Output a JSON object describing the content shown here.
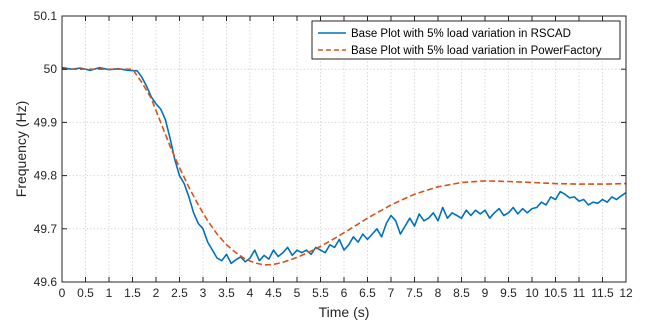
{
  "chart_data": {
    "type": "line",
    "title": "",
    "xlabel": "Time (s)",
    "ylabel": "Frequency (Hz)",
    "xlim": [
      0,
      12
    ],
    "ylim": [
      49.6,
      50.1
    ],
    "xticks": [
      0,
      0.5,
      1,
      1.5,
      2,
      2.5,
      3,
      3.5,
      4,
      4.5,
      5,
      5.5,
      6,
      6.5,
      7,
      7.5,
      8,
      8.5,
      9,
      9.5,
      10,
      10.5,
      11,
      11.5,
      12
    ],
    "xtick_labels": [
      "0",
      "0.5",
      "1",
      "1.5",
      "2",
      "2.5",
      "3",
      "3.5",
      "4",
      "4.5",
      "5",
      "5.5",
      "6",
      "6.5",
      "7",
      "7.5",
      "8",
      "8.5",
      "9",
      "9.5",
      "10",
      "10.5",
      "11",
      "11.5",
      "12"
    ],
    "yticks": [
      49.6,
      49.7,
      49.8,
      49.9,
      50,
      50.1
    ],
    "ytick_labels": [
      "49.6",
      "49.7",
      "49.8",
      "49.9",
      "50",
      "50.1"
    ],
    "grid": true,
    "legend_position": "top-right",
    "series": [
      {
        "name": "Base Plot with 5% load variation in RSCAD",
        "color": "#0072BD",
        "style": "solid",
        "x": [
          0,
          0.2,
          0.4,
          0.6,
          0.8,
          1.0,
          1.2,
          1.4,
          1.6,
          1.7,
          1.8,
          1.9,
          2.0,
          2.1,
          2.2,
          2.3,
          2.4,
          2.5,
          2.6,
          2.7,
          2.8,
          2.9,
          3.0,
          3.1,
          3.2,
          3.3,
          3.4,
          3.5,
          3.6,
          3.7,
          3.8,
          3.9,
          4.0,
          4.1,
          4.2,
          4.3,
          4.4,
          4.5,
          4.6,
          4.7,
          4.8,
          4.9,
          5.0,
          5.1,
          5.2,
          5.3,
          5.4,
          5.5,
          5.6,
          5.7,
          5.8,
          5.9,
          6.0,
          6.1,
          6.2,
          6.3,
          6.4,
          6.5,
          6.6,
          6.7,
          6.8,
          6.9,
          7.0,
          7.1,
          7.2,
          7.3,
          7.4,
          7.5,
          7.6,
          7.7,
          7.8,
          7.9,
          8.0,
          8.1,
          8.2,
          8.3,
          8.4,
          8.5,
          8.6,
          8.7,
          8.8,
          8.9,
          9.0,
          9.1,
          9.2,
          9.3,
          9.4,
          9.5,
          9.6,
          9.7,
          9.8,
          9.9,
          10.0,
          10.1,
          10.2,
          10.3,
          10.4,
          10.5,
          10.6,
          10.7,
          10.8,
          10.9,
          11.0,
          11.1,
          11.2,
          11.3,
          11.4,
          11.5,
          11.6,
          11.7,
          11.8,
          11.9,
          12.0
        ],
        "y": [
          50.003,
          50.0,
          50.002,
          49.998,
          50.003,
          49.999,
          50.001,
          49.998,
          49.997,
          49.985,
          49.968,
          49.948,
          49.935,
          49.925,
          49.905,
          49.87,
          49.83,
          49.8,
          49.785,
          49.76,
          49.73,
          49.71,
          49.7,
          49.675,
          49.66,
          49.645,
          49.64,
          49.652,
          49.635,
          49.642,
          49.647,
          49.638,
          49.645,
          49.66,
          49.64,
          49.65,
          49.643,
          49.66,
          49.648,
          49.655,
          49.665,
          49.65,
          49.66,
          49.655,
          49.66,
          49.652,
          49.665,
          49.66,
          49.655,
          49.67,
          49.665,
          49.68,
          49.66,
          49.67,
          49.685,
          49.675,
          49.69,
          49.68,
          49.69,
          49.7,
          49.685,
          49.71,
          49.725,
          49.715,
          49.69,
          49.705,
          49.72,
          49.705,
          49.728,
          49.715,
          49.72,
          49.73,
          49.715,
          49.74,
          49.72,
          49.73,
          49.725,
          49.72,
          49.735,
          49.725,
          49.735,
          49.728,
          49.735,
          49.72,
          49.73,
          49.738,
          49.725,
          49.73,
          49.74,
          49.728,
          49.738,
          49.73,
          49.738,
          49.74,
          49.75,
          49.745,
          49.76,
          49.755,
          49.77,
          49.765,
          49.758,
          49.76,
          49.752,
          49.755,
          49.745,
          49.75,
          49.748,
          49.755,
          49.75,
          49.76,
          49.755,
          49.762,
          49.768
        ]
      },
      {
        "name": "Base Plot with 5% load variation in PowerFactory",
        "color": "#D95319",
        "style": "dashed",
        "x": [
          0,
          0.5,
          1.0,
          1.5,
          1.7,
          1.9,
          2.1,
          2.3,
          2.5,
          2.7,
          2.9,
          3.1,
          3.3,
          3.5,
          3.7,
          3.9,
          4.1,
          4.3,
          4.5,
          4.7,
          4.9,
          5.1,
          5.3,
          5.5,
          5.8,
          6.1,
          6.5,
          7.0,
          7.5,
          8.0,
          8.5,
          9.0,
          9.5,
          10.0,
          10.5,
          11.0,
          11.5,
          12.0
        ],
        "y": [
          50.0,
          50.0,
          50.0,
          50.0,
          49.975,
          49.945,
          49.9,
          49.855,
          49.815,
          49.778,
          49.745,
          49.715,
          49.69,
          49.67,
          49.655,
          49.643,
          49.636,
          49.632,
          49.633,
          49.637,
          49.643,
          49.65,
          49.658,
          49.667,
          49.682,
          49.698,
          49.72,
          49.745,
          49.765,
          49.779,
          49.787,
          49.79,
          49.789,
          49.787,
          49.785,
          49.784,
          49.784,
          49.785
        ]
      }
    ]
  }
}
